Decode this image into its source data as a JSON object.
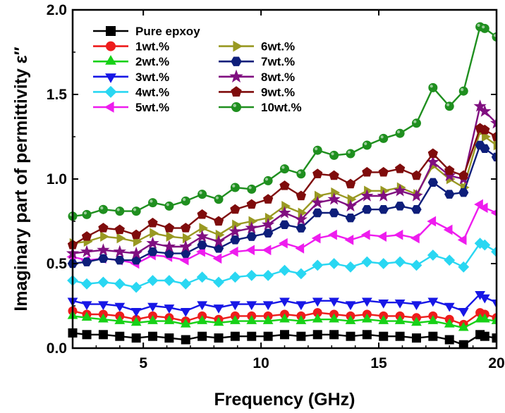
{
  "chart_data": {
    "type": "line",
    "title": "",
    "xlabel": "Frequency (GHz)",
    "ylabel": "Imaginary part of permittivity ε″",
    "xlim": [
      2,
      20
    ],
    "ylim": [
      0.0,
      2.0
    ],
    "xticks": [
      "5",
      "10",
      "15",
      "20"
    ],
    "yticks": [
      "0.0",
      "0.5",
      "1.0",
      "1.5",
      "2.0"
    ],
    "grid": false,
    "legend_position": "top-left",
    "x": [
      2.0,
      2.6,
      3.3,
      4.0,
      4.7,
      5.4,
      6.1,
      6.8,
      7.5,
      8.2,
      8.9,
      9.6,
      10.3,
      11.0,
      11.7,
      12.4,
      13.1,
      13.8,
      14.5,
      15.2,
      15.9,
      16.6,
      17.3,
      18.0,
      18.6,
      19.3,
      19.5,
      20.0
    ],
    "series": [
      {
        "name": "Pure epxoy",
        "color": "#000000",
        "marker": "square",
        "values": [
          0.09,
          0.08,
          0.08,
          0.07,
          0.06,
          0.07,
          0.06,
          0.05,
          0.07,
          0.06,
          0.07,
          0.07,
          0.07,
          0.08,
          0.07,
          0.08,
          0.08,
          0.07,
          0.08,
          0.07,
          0.07,
          0.06,
          0.07,
          0.05,
          0.02,
          0.08,
          0.07,
          0.06
        ]
      },
      {
        "name": "1wt.%",
        "color": "#ee1c1c",
        "marker": "circle",
        "values": [
          0.22,
          0.2,
          0.2,
          0.19,
          0.17,
          0.19,
          0.18,
          0.16,
          0.19,
          0.17,
          0.19,
          0.19,
          0.19,
          0.2,
          0.19,
          0.21,
          0.2,
          0.19,
          0.2,
          0.19,
          0.19,
          0.18,
          0.19,
          0.17,
          0.14,
          0.21,
          0.2,
          0.18
        ]
      },
      {
        "name": "2wt.%",
        "color": "#17d117",
        "marker": "triangle-up",
        "values": [
          0.19,
          0.18,
          0.17,
          0.16,
          0.15,
          0.16,
          0.16,
          0.14,
          0.16,
          0.15,
          0.16,
          0.16,
          0.16,
          0.17,
          0.16,
          0.17,
          0.17,
          0.16,
          0.17,
          0.16,
          0.16,
          0.15,
          0.16,
          0.14,
          0.12,
          0.17,
          0.17,
          0.16
        ]
      },
      {
        "name": "3wt.%",
        "color": "#1717e6",
        "marker": "triangle-down",
        "values": [
          0.28,
          0.26,
          0.26,
          0.25,
          0.22,
          0.25,
          0.24,
          0.22,
          0.26,
          0.24,
          0.26,
          0.26,
          0.26,
          0.28,
          0.26,
          0.28,
          0.28,
          0.26,
          0.28,
          0.27,
          0.27,
          0.26,
          0.28,
          0.25,
          0.22,
          0.32,
          0.3,
          0.27
        ]
      },
      {
        "name": "4wt.%",
        "color": "#29d7f2",
        "marker": "diamond",
        "values": [
          0.4,
          0.38,
          0.39,
          0.38,
          0.36,
          0.4,
          0.4,
          0.38,
          0.42,
          0.39,
          0.42,
          0.43,
          0.43,
          0.46,
          0.44,
          0.49,
          0.5,
          0.48,
          0.51,
          0.5,
          0.51,
          0.49,
          0.55,
          0.52,
          0.48,
          0.62,
          0.61,
          0.57
        ]
      },
      {
        "name": "5wt.%",
        "color": "#ee1cee",
        "marker": "triangle-left",
        "values": [
          0.54,
          0.52,
          0.53,
          0.52,
          0.5,
          0.55,
          0.54,
          0.52,
          0.57,
          0.53,
          0.57,
          0.58,
          0.58,
          0.62,
          0.59,
          0.65,
          0.67,
          0.64,
          0.67,
          0.66,
          0.67,
          0.65,
          0.75,
          0.7,
          0.64,
          0.85,
          0.83,
          0.8
        ]
      },
      {
        "name": "6wt.%",
        "color": "#999922",
        "marker": "triangle-right",
        "values": [
          0.62,
          0.63,
          0.66,
          0.65,
          0.63,
          0.68,
          0.66,
          0.65,
          0.71,
          0.67,
          0.73,
          0.75,
          0.77,
          0.84,
          0.8,
          0.9,
          0.92,
          0.88,
          0.93,
          0.93,
          0.95,
          0.91,
          1.08,
          1.0,
          0.95,
          1.28,
          1.25,
          1.2
        ]
      },
      {
        "name": "7wt.%",
        "color": "#0e1e7a",
        "marker": "hexagon",
        "values": [
          0.5,
          0.51,
          0.53,
          0.52,
          0.52,
          0.57,
          0.56,
          0.56,
          0.61,
          0.59,
          0.64,
          0.66,
          0.68,
          0.73,
          0.71,
          0.8,
          0.8,
          0.77,
          0.82,
          0.82,
          0.84,
          0.82,
          0.98,
          0.91,
          0.92,
          1.2,
          1.18,
          1.13
        ]
      },
      {
        "name": "8wt.%",
        "color": "#800f80",
        "marker": "star",
        "values": [
          0.56,
          0.57,
          0.58,
          0.57,
          0.56,
          0.62,
          0.6,
          0.6,
          0.66,
          0.63,
          0.69,
          0.71,
          0.73,
          0.8,
          0.76,
          0.86,
          0.88,
          0.84,
          0.9,
          0.9,
          0.93,
          0.9,
          1.1,
          1.02,
          1.0,
          1.43,
          1.4,
          1.33
        ]
      },
      {
        "name": "9wt.%",
        "color": "#7f0c0c",
        "marker": "pentagon",
        "values": [
          0.61,
          0.66,
          0.71,
          0.7,
          0.67,
          0.74,
          0.71,
          0.71,
          0.79,
          0.75,
          0.82,
          0.85,
          0.88,
          0.96,
          0.9,
          1.03,
          1.02,
          0.97,
          1.04,
          1.04,
          1.06,
          1.02,
          1.15,
          1.05,
          1.02,
          1.3,
          1.29,
          1.25
        ]
      },
      {
        "name": "10wt.%",
        "color": "#1f8f1f",
        "marker": "sphere",
        "values": [
          0.78,
          0.79,
          0.82,
          0.81,
          0.81,
          0.86,
          0.84,
          0.87,
          0.91,
          0.88,
          0.95,
          0.94,
          0.99,
          1.06,
          1.03,
          1.17,
          1.14,
          1.15,
          1.2,
          1.24,
          1.27,
          1.33,
          1.54,
          1.43,
          1.52,
          1.9,
          1.89,
          1.84
        ]
      }
    ]
  }
}
